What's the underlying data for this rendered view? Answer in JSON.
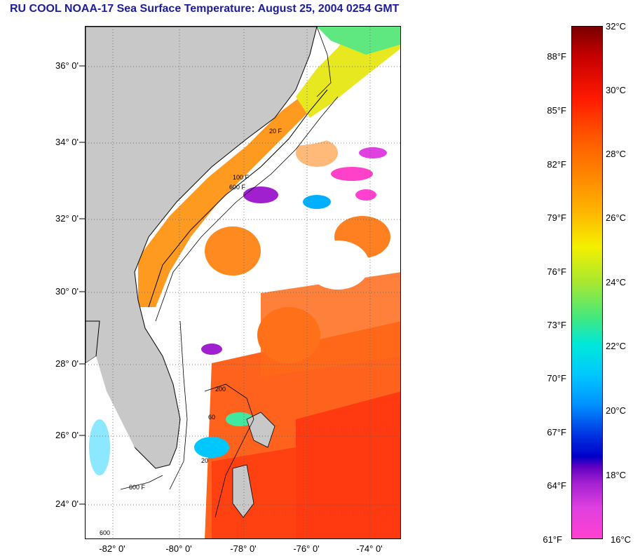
{
  "title": "RU COOL  NOAA-17  Sea Surface Temperature:  August 25, 2004 0254 GMT",
  "map": {
    "lat_labels": [
      "36° 0'",
      "34° 0'",
      "32° 0'",
      "30° 0'",
      "28° 0'",
      "26° 0'",
      "24° 0'"
    ],
    "lon_labels": [
      "-82° 0'",
      "-80° 0'",
      "-78° 0'",
      "-76° 0'",
      "-74° 0'"
    ],
    "colors": {
      "land": "#c8c8c8",
      "cloud": "#ffffff",
      "coastline": "#000000"
    },
    "isobath_labels": [
      "20 F",
      "100 F",
      "600 F",
      "20",
      "60",
      "600 F",
      "200",
      "600"
    ]
  },
  "colorbar": {
    "fahrenheit_ticks": [
      "88°F",
      "85°F",
      "82°F",
      "79°F",
      "76°F",
      "73°F",
      "70°F",
      "67°F",
      "64°F",
      "61°F"
    ],
    "celsius_ticks": [
      "32°C",
      "30°C",
      "28°C",
      "26°C",
      "24°C",
      "22°C",
      "20°C",
      "18°C",
      "16°C"
    ]
  }
}
